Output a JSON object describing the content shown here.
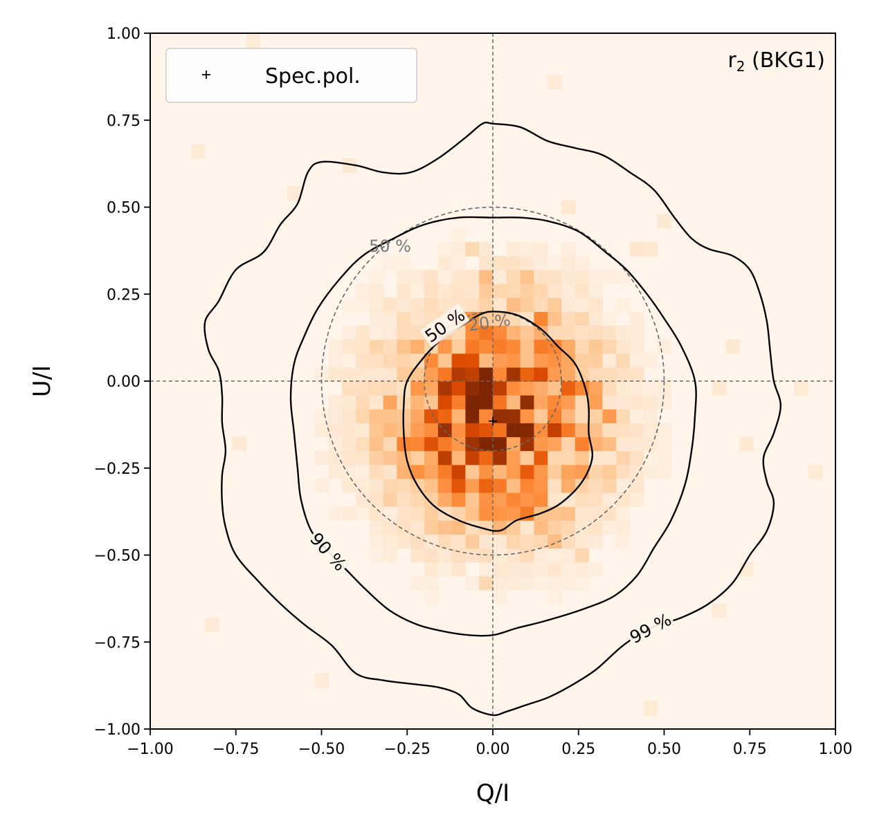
{
  "chart_data": {
    "type": "heatmap",
    "title": "",
    "annotation": "r₂ (BKG1)",
    "xlabel": "Q/I",
    "ylabel": "U/I",
    "xlim": [
      -1.0,
      1.0
    ],
    "ylim": [
      -1.0,
      1.0
    ],
    "xticks": [
      -1.0,
      -0.75,
      -0.5,
      -0.25,
      0.0,
      0.25,
      0.5,
      0.75,
      1.0
    ],
    "yticks": [
      -1.0,
      -0.75,
      -0.5,
      -0.25,
      0.0,
      0.25,
      0.5,
      0.75,
      1.0
    ],
    "xtick_labels": [
      "−1.00",
      "−0.75",
      "−0.50",
      "−0.25",
      "0.00",
      "0.25",
      "0.50",
      "0.75",
      "1.00"
    ],
    "ytick_labels": [
      "−1.00",
      "−0.75",
      "−0.50",
      "−0.25",
      "0.00",
      "0.25",
      "0.50",
      "0.75",
      "1.00"
    ],
    "colormap": "Oranges",
    "background_color": "#fff5eb",
    "histogram_bins": 50,
    "histogram_center": [
      0.0,
      -0.1
    ],
    "histogram_sigma": 0.22,
    "reference_lines": {
      "x": 0.0,
      "y": 0.0,
      "style": "dashed",
      "color": "#666666"
    },
    "reference_circles": [
      {
        "center": [
          0.0,
          0.0
        ],
        "radius": 0.2,
        "label": "20 %"
      },
      {
        "center": [
          0.0,
          0.0
        ],
        "radius": 0.5,
        "label": "50 %"
      }
    ],
    "contours": [
      {
        "level": "50 %",
        "label": "50 %",
        "label_at": [
          -0.14,
          0.16
        ],
        "label_angle": -35,
        "points": [
          [
            0.0,
            0.2
          ],
          [
            0.07,
            0.19
          ],
          [
            0.14,
            0.15
          ],
          [
            0.19,
            0.1
          ],
          [
            0.24,
            0.05
          ],
          [
            0.27,
            -0.02
          ],
          [
            0.28,
            -0.08
          ],
          [
            0.28,
            -0.15
          ],
          [
            0.29,
            -0.22
          ],
          [
            0.26,
            -0.29
          ],
          [
            0.2,
            -0.35
          ],
          [
            0.14,
            -0.38
          ],
          [
            0.07,
            -0.4
          ],
          [
            0.02,
            -0.43
          ],
          [
            -0.04,
            -0.42
          ],
          [
            -0.1,
            -0.4
          ],
          [
            -0.17,
            -0.36
          ],
          [
            -0.22,
            -0.3
          ],
          [
            -0.25,
            -0.23
          ],
          [
            -0.26,
            -0.15
          ],
          [
            -0.26,
            -0.07
          ],
          [
            -0.25,
            0.0
          ],
          [
            -0.2,
            0.07
          ],
          [
            -0.15,
            0.12
          ],
          [
            -0.09,
            0.16
          ],
          [
            -0.04,
            0.19
          ]
        ]
      },
      {
        "level": "90 %",
        "label": "90 %",
        "label_at": [
          -0.48,
          -0.49
        ],
        "label_angle": 48,
        "points": [
          [
            0.0,
            0.47
          ],
          [
            0.08,
            0.47
          ],
          [
            0.16,
            0.46
          ],
          [
            0.25,
            0.43
          ],
          [
            0.33,
            0.37
          ],
          [
            0.39,
            0.32
          ],
          [
            0.45,
            0.25
          ],
          [
            0.5,
            0.18
          ],
          [
            0.55,
            0.1
          ],
          [
            0.59,
            0.0
          ],
          [
            0.59,
            -0.1
          ],
          [
            0.58,
            -0.2
          ],
          [
            0.56,
            -0.3
          ],
          [
            0.52,
            -0.4
          ],
          [
            0.47,
            -0.48
          ],
          [
            0.42,
            -0.56
          ],
          [
            0.35,
            -0.62
          ],
          [
            0.25,
            -0.66
          ],
          [
            0.15,
            -0.69
          ],
          [
            0.07,
            -0.71
          ],
          [
            0.0,
            -0.73
          ],
          [
            -0.07,
            -0.73
          ],
          [
            -0.14,
            -0.72
          ],
          [
            -0.22,
            -0.7
          ],
          [
            -0.3,
            -0.66
          ],
          [
            -0.37,
            -0.6
          ],
          [
            -0.42,
            -0.55
          ],
          [
            -0.48,
            -0.49
          ],
          [
            -0.53,
            -0.43
          ],
          [
            -0.56,
            -0.34
          ],
          [
            -0.57,
            -0.25
          ],
          [
            -0.58,
            -0.15
          ],
          [
            -0.59,
            -0.05
          ],
          [
            -0.58,
            0.05
          ],
          [
            -0.55,
            0.13
          ],
          [
            -0.51,
            0.21
          ],
          [
            -0.45,
            0.29
          ],
          [
            -0.38,
            0.36
          ],
          [
            -0.29,
            0.41
          ],
          [
            -0.2,
            0.45
          ],
          [
            -0.1,
            0.47
          ]
        ]
      },
      {
        "level": "99 %",
        "label": "99 %",
        "label_at": [
          0.46,
          -0.71
        ],
        "label_angle": -28,
        "points": [
          [
            0.0,
            0.74
          ],
          [
            0.08,
            0.73
          ],
          [
            0.16,
            0.69
          ],
          [
            0.24,
            0.67
          ],
          [
            0.32,
            0.65
          ],
          [
            0.4,
            0.6
          ],
          [
            0.47,
            0.55
          ],
          [
            0.53,
            0.47
          ],
          [
            0.58,
            0.41
          ],
          [
            0.63,
            0.38
          ],
          [
            0.7,
            0.36
          ],
          [
            0.75,
            0.32
          ],
          [
            0.78,
            0.25
          ],
          [
            0.8,
            0.17
          ],
          [
            0.81,
            0.08
          ],
          [
            0.82,
            0.0
          ],
          [
            0.84,
            -0.07
          ],
          [
            0.82,
            -0.15
          ],
          [
            0.79,
            -0.22
          ],
          [
            0.8,
            -0.29
          ],
          [
            0.82,
            -0.35
          ],
          [
            0.8,
            -0.43
          ],
          [
            0.75,
            -0.5
          ],
          [
            0.7,
            -0.58
          ],
          [
            0.63,
            -0.64
          ],
          [
            0.55,
            -0.68
          ],
          [
            0.46,
            -0.71
          ],
          [
            0.38,
            -0.76
          ],
          [
            0.3,
            -0.83
          ],
          [
            0.22,
            -0.88
          ],
          [
            0.16,
            -0.91
          ],
          [
            0.1,
            -0.93
          ],
          [
            0.04,
            -0.95
          ],
          [
            0.0,
            -0.96
          ],
          [
            -0.06,
            -0.94
          ],
          [
            -0.1,
            -0.9
          ],
          [
            -0.16,
            -0.88
          ],
          [
            -0.24,
            -0.87
          ],
          [
            -0.32,
            -0.86
          ],
          [
            -0.4,
            -0.84
          ],
          [
            -0.47,
            -0.76
          ],
          [
            -0.55,
            -0.7
          ],
          [
            -0.62,
            -0.64
          ],
          [
            -0.68,
            -0.58
          ],
          [
            -0.75,
            -0.5
          ],
          [
            -0.78,
            -0.42
          ],
          [
            -0.79,
            -0.35
          ],
          [
            -0.79,
            -0.27
          ],
          [
            -0.78,
            -0.2
          ],
          [
            -0.79,
            -0.12
          ],
          [
            -0.79,
            -0.04
          ],
          [
            -0.8,
            0.03
          ],
          [
            -0.83,
            0.09
          ],
          [
            -0.84,
            0.17
          ],
          [
            -0.8,
            0.23
          ],
          [
            -0.75,
            0.32
          ],
          [
            -0.67,
            0.37
          ],
          [
            -0.62,
            0.45
          ],
          [
            -0.57,
            0.51
          ],
          [
            -0.54,
            0.6
          ],
          [
            -0.5,
            0.63
          ],
          [
            -0.4,
            0.62
          ],
          [
            -0.32,
            0.6
          ],
          [
            -0.24,
            0.6
          ],
          [
            -0.16,
            0.64
          ],
          [
            -0.08,
            0.7
          ],
          [
            -0.03,
            0.74
          ]
        ]
      }
    ],
    "series": [
      {
        "name": "Spec.pol.",
        "marker": "+",
        "x": [
          0.0
        ],
        "y": [
          -0.115
        ]
      }
    ],
    "legend": {
      "location": "upper-left",
      "entries": [
        "Spec.pol."
      ]
    }
  }
}
